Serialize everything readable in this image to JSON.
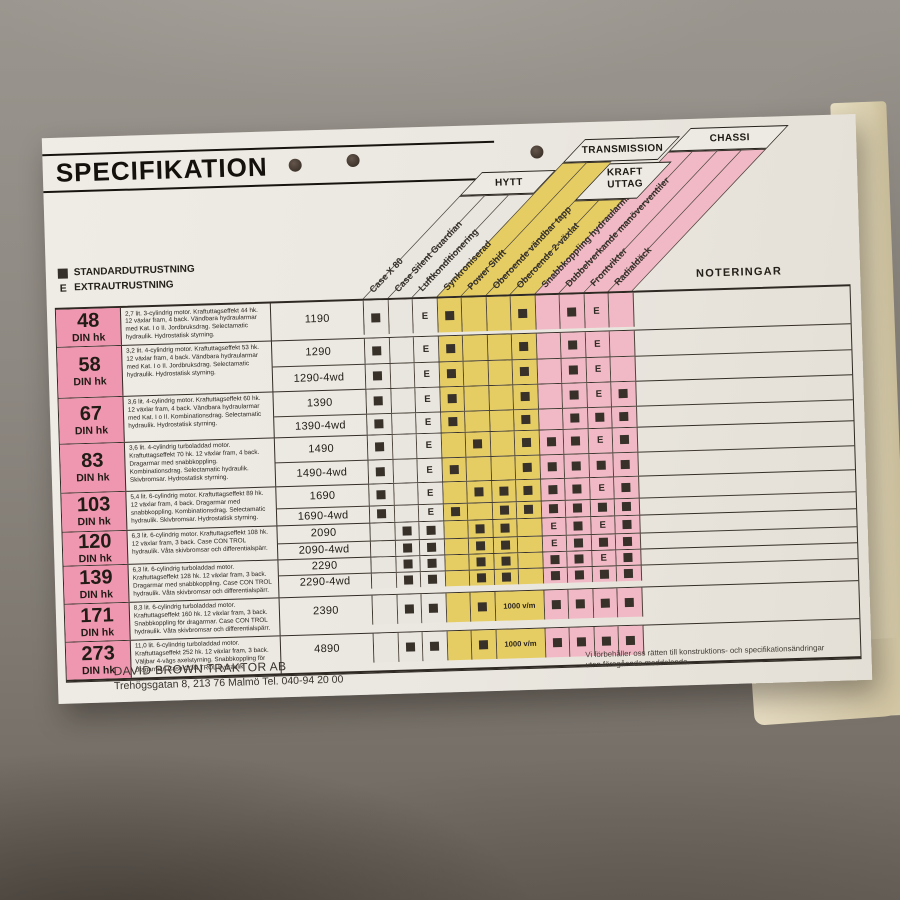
{
  "document": {
    "title": "SPECIFIKATION",
    "legend": {
      "standard_symbol": "■",
      "standard_label": "STANDARDUTRUSTNING",
      "extra_symbol": "E",
      "extra_label": "EXTRAUTRUSTNING"
    },
    "notes_header": "NOTERINGAR",
    "column_groups": [
      {
        "id": "hytt",
        "label": "HYTT"
      },
      {
        "id": "transmission",
        "label": "TRANSMISSION"
      },
      {
        "id": "kraftuttag",
        "label": "KRAFT UTTAG",
        "lines": "KRAFT\nUTTAG"
      },
      {
        "id": "chassi",
        "label": "CHASSI"
      }
    ],
    "columns": [
      {
        "label": "Case X 80",
        "group": "hytt"
      },
      {
        "label": "Case Silent Guardian",
        "group": "hytt"
      },
      {
        "label": "Luftkonditionering",
        "group": "hytt"
      },
      {
        "label": "Synkroniserad",
        "group": "transmission"
      },
      {
        "label": "Power Shift",
        "group": "transmission"
      },
      {
        "label": "Oberoende vändbar tapp",
        "group": "kraftuttag"
      },
      {
        "label": "Oberoende 2-växlat",
        "group": "kraftuttag"
      },
      {
        "label": "Snabbkoppling hydraularmar",
        "group": "chassi"
      },
      {
        "label": "Dubbelverkande manöverventiler",
        "group": "chassi"
      },
      {
        "label": "Frontvikter",
        "group": "chassi"
      },
      {
        "label": "Radialdäck",
        "group": "chassi"
      }
    ],
    "pto_note": "1000 v/m",
    "rows": [
      {
        "power": "48",
        "power_unit": "DIN hk",
        "description": "2,7 lit. 3-cylindrig motor. Kraftuttagseffekt 44 hk. 12 växlar fram, 4 back. Vändbara hydraularmar med Kat. I o II. Jordbruksdrag. Selectamatic hydraulik. Hydrostatisk styrning.",
        "models": [
          {
            "name": "1190",
            "cells": [
              "S",
              "",
              "E",
              "S",
              "",
              "",
              "S",
              "",
              "S",
              "E",
              ""
            ]
          }
        ]
      },
      {
        "power": "58",
        "power_unit": "DIN hk",
        "description": "3,2 lit. 4-cylindrig motor. Kraftuttagseffekt 53 hk. 12 växlar fram, 4 back. Vändbara hydraularmar med Kat. I o II. Jordbruksdrag. Selectamatic hydraulik. Hydrostatisk styrning.",
        "models": [
          {
            "name": "1290",
            "cells": [
              "S",
              "",
              "E",
              "S",
              "",
              "",
              "S",
              "",
              "S",
              "E",
              ""
            ]
          },
          {
            "name": "1290-4wd",
            "cells": [
              "S",
              "",
              "E",
              "S",
              "",
              "",
              "S",
              "",
              "S",
              "E",
              ""
            ]
          }
        ]
      },
      {
        "power": "67",
        "power_unit": "DIN hk",
        "description": "3,6 lit. 4-cylindrig motor. Kraftuttagseffekt 60 hk. 12 växlar fram, 4 back. Vändbara hydraularmar med Kat. I o II. Kombinationsdrag. Selectamatic hydraulik. Hydrostatisk styrning.",
        "models": [
          {
            "name": "1390",
            "cells": [
              "S",
              "",
              "E",
              "S",
              "",
              "",
              "S",
              "",
              "S",
              "E",
              "S"
            ]
          },
          {
            "name": "1390-4wd",
            "cells": [
              "S",
              "",
              "E",
              "S",
              "",
              "",
              "S",
              "",
              "S",
              "S",
              "S"
            ]
          }
        ]
      },
      {
        "power": "83",
        "power_unit": "DIN hk",
        "description": "3,6 lit. 4-cylindrig turboladdad motor. Kraftuttagseffekt 70 hk. 12 växlar fram, 4 back. Dragarmar med snabbkoppling. Kombinationsdrag. Selectamatic hydraulik. Skivbromsar. Hydrostatisk styrning.",
        "models": [
          {
            "name": "1490",
            "cells": [
              "S",
              "",
              "E",
              "",
              "S",
              "",
              "S",
              "S",
              "S",
              "E",
              "S"
            ]
          },
          {
            "name": "1490-4wd",
            "cells": [
              "S",
              "",
              "E",
              "S",
              "",
              "",
              "S",
              "S",
              "S",
              "S",
              "S"
            ]
          }
        ]
      },
      {
        "power": "103",
        "power_unit": "DIN hk",
        "description": "5,4 lit. 6-cylindrig motor. Kraftuttagseffekt 89 hk. 12 växlar fram, 4 back. Dragarmar med snabbkoppling. Kombinationsdrag. Selectamatic hydraulik. Skivbromsar. Hydrostatisk styrning.",
        "models": [
          {
            "name": "1690",
            "cells": [
              "S",
              "",
              "E",
              "",
              "S",
              "S",
              "S",
              "S",
              "S",
              "E",
              "S"
            ]
          },
          {
            "name": "1690-4wd",
            "cells": [
              "S",
              "",
              "E",
              "S",
              "",
              "S",
              "S",
              "S",
              "S",
              "S",
              "S"
            ]
          }
        ]
      },
      {
        "power": "120",
        "power_unit": "DIN hk",
        "description": "6,3 lit. 6-cylindrig motor. Kraftuttagseffekt 108 hk. 12 växlar fram, 3 back. Case CON TROL hydraulik. Våta skivbromsar och differentialspärr.",
        "models": [
          {
            "name": "2090",
            "cells": [
              "",
              "S",
              "S",
              "",
              "S",
              "S",
              "",
              "E",
              "S",
              "E",
              "S"
            ]
          },
          {
            "name": "2090-4wd",
            "cells": [
              "",
              "S",
              "S",
              "",
              "S",
              "S",
              "",
              "E",
              "S",
              "S",
              "S"
            ]
          }
        ]
      },
      {
        "power": "139",
        "power_unit": "DIN hk",
        "description": "6,3 lit. 6-cylindrig turboladdad motor. Kraftuttagseffekt 128 hk. 12 växlar fram, 3 back. Dragarmar med snabbkoppling. Case CON TROL hydraulik. Våta skivbromsar och differentialspärr.",
        "models": [
          {
            "name": "2290",
            "cells": [
              "",
              "S",
              "S",
              "",
              "S",
              "S",
              "",
              "S",
              "S",
              "E",
              "S"
            ]
          },
          {
            "name": "2290-4wd",
            "cells": [
              "",
              "S",
              "S",
              "",
              "S",
              "S",
              "",
              "S",
              "S",
              "S",
              "S"
            ]
          }
        ]
      },
      {
        "power": "171",
        "power_unit": "DIN hk",
        "description": "8,3 lit. 6-cylindrig turboladdad motor. Kraftuttagseffekt 160 hk. 12 växlar fram, 3 back. Snabbkoppling för dragarmar. Case CON TROL hydraulik. Våta skivbromsar och differentialspärr.",
        "models": [
          {
            "name": "2390",
            "cells": [
              "",
              "S",
              "S",
              "",
              "S",
              "PTO",
              "PTO",
              "S",
              "S",
              "S",
              "S"
            ]
          }
        ]
      },
      {
        "power": "273",
        "power_unit": "DIN hk",
        "description": "11,0 lit. 6-cylindrig turboladdad motor. Kraftuttagseffekt 252 hk. 12 växlar fram, 3 back. Väljbar 4-vägs axelstyrning. Snabbkoppling för dragarmar. Case CON TROL hydraulik.",
        "models": [
          {
            "name": "4890",
            "cells": [
              "",
              "S",
              "S",
              "",
              "S",
              "PTO",
              "PTO",
              "S",
              "S",
              "S",
              "S"
            ]
          }
        ]
      }
    ],
    "footer": {
      "company": "DAVID BROWN TRAKTOR AB",
      "address": "Trehögsgatan 8, 213 76 Malmö Tel. 040-94 20 00",
      "disclaimer_line1": "Vi förbehåller oss rätten till konstruktions- och specifikationsändringar",
      "disclaimer_line2": "utan föregående meddelande."
    }
  }
}
